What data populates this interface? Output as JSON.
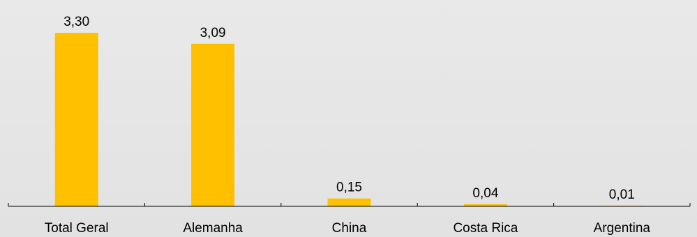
{
  "chart_data": {
    "type": "bar",
    "categories": [
      "Total Geral",
      "Alemanha",
      "China",
      "Costa Rica",
      "Argentina"
    ],
    "values": [
      3.3,
      3.09,
      0.15,
      0.04,
      0.01
    ],
    "value_labels": [
      "3,30",
      "3,09",
      "0,15",
      "0,04",
      "0,01"
    ],
    "title": "",
    "xlabel": "",
    "ylabel": "",
    "ylim": [
      0,
      3.3
    ],
    "grid": false,
    "bar_color": "#ffc000",
    "axis_color": "#000000",
    "background_color": "#e6e6e6"
  }
}
